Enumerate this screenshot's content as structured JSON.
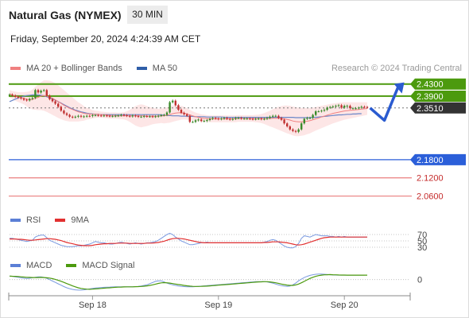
{
  "header": {
    "title": "Natural Gas (NYMEX)",
    "timeframe": "30 MIN",
    "datetime": "Friday, September 20, 2024 4:24:39 AM CET",
    "credit": "Research © 2024 Trading Central"
  },
  "colors": {
    "green": "#4c9a0e",
    "blue": "#2b5fd9",
    "red": "#ec8a8a",
    "dark": "#333333",
    "band": "#fde3e3",
    "ma50": "#6a86c8",
    "ma20": "#f08080",
    "rsi": "#7a9ae0",
    "nine_ma": "#e23030",
    "macd": "#7a9ae0",
    "macd_signal": "#4c9a0e",
    "candle_up": "#3a8a2a",
    "candle_down": "#c03030"
  },
  "legends": {
    "price": [
      {
        "label": "MA 20 + Bollinger Bands",
        "color": "#f08080"
      },
      {
        "label": "MA 50",
        "color": "#2f5ea8"
      }
    ],
    "rsi": [
      {
        "label": "RSI",
        "color": "#5b7fd6"
      },
      {
        "label": "9MA",
        "color": "#e23030"
      }
    ],
    "macd": [
      {
        "label": "MACD",
        "color": "#5b7fd6"
      },
      {
        "label": "MACD Signal",
        "color": "#4c9a0e"
      }
    ]
  },
  "chart_data": {
    "type": "line",
    "ylim": [
      2.03,
      2.445
    ],
    "xlim": [
      0,
      140
    ],
    "levels": [
      {
        "label": "2.4300",
        "value": 2.43,
        "style": "green"
      },
      {
        "label": "2.3900",
        "value": 2.39,
        "style": "green"
      },
      {
        "label": "2.3510",
        "value": 2.351,
        "style": "current"
      },
      {
        "label": "2.1800",
        "value": 2.18,
        "style": "blue"
      },
      {
        "label": "2.1200",
        "value": 2.12,
        "style": "red"
      },
      {
        "label": "2.0600",
        "value": 2.06,
        "style": "red"
      }
    ],
    "x_ticks": [
      {
        "label": "Sep 18",
        "x": 29
      },
      {
        "label": "Sep 19",
        "x": 73
      },
      {
        "label": "Sep 20",
        "x": 117
      }
    ],
    "price": [
      2.395,
      2.392,
      2.388,
      2.385,
      2.382,
      2.378,
      2.376,
      2.381,
      2.384,
      2.41,
      2.402,
      2.408,
      2.41,
      2.392,
      2.38,
      2.373,
      2.365,
      2.355,
      2.342,
      2.333,
      2.328,
      2.322,
      2.32,
      2.322,
      2.325,
      2.322,
      2.323,
      2.325,
      2.324,
      2.327,
      2.327,
      2.326,
      2.325,
      2.326,
      2.325,
      2.324,
      2.324,
      2.325,
      2.326,
      2.328,
      2.327,
      2.325,
      2.323,
      2.326,
      2.324,
      2.322,
      2.322,
      2.324,
      2.323,
      2.323,
      2.322,
      2.323,
      2.325,
      2.327,
      2.328,
      2.336,
      2.37,
      2.375,
      2.36,
      2.345,
      2.335,
      2.33,
      2.325,
      2.305,
      2.305,
      2.31,
      2.313,
      2.308,
      2.308,
      2.311,
      2.315,
      2.318,
      2.316,
      2.314,
      2.316,
      2.318,
      2.315,
      2.313,
      2.315,
      2.318,
      2.318,
      2.316,
      2.316,
      2.316,
      2.315,
      2.314,
      2.315,
      2.316,
      2.314,
      2.315,
      2.318,
      2.322,
      2.325,
      2.325,
      2.318,
      2.312,
      2.3,
      2.29,
      2.28,
      2.275,
      2.272,
      2.28,
      2.3,
      2.315,
      2.318,
      2.318,
      2.328,
      2.34,
      2.34,
      2.342,
      2.345,
      2.352,
      2.354,
      2.356,
      2.358,
      2.36,
      2.352,
      2.358,
      2.358,
      2.35,
      2.35,
      2.35,
      2.352,
      2.355,
      2.354,
      2.353
    ],
    "ma20": [
      2.398,
      2.394,
      2.39,
      2.387,
      2.385,
      2.383,
      2.38,
      2.378,
      2.379,
      2.383,
      2.386,
      2.39,
      2.392,
      2.39,
      2.387,
      2.383,
      2.378,
      2.372,
      2.366,
      2.36,
      2.355,
      2.35,
      2.346,
      2.342,
      2.338,
      2.336,
      2.333,
      2.332,
      2.331,
      2.33,
      2.33,
      2.33,
      2.329,
      2.328,
      2.327,
      2.326,
      2.326,
      2.326,
      2.325,
      2.325,
      2.325,
      2.325,
      2.325,
      2.325,
      2.325,
      2.325,
      2.325,
      2.325,
      2.324,
      2.324,
      2.324,
      2.324,
      2.324,
      2.325,
      2.325,
      2.327,
      2.329,
      2.332,
      2.334,
      2.335,
      2.335,
      2.334,
      2.331,
      2.328,
      2.325,
      2.322,
      2.32,
      2.318,
      2.317,
      2.316,
      2.315,
      2.315,
      2.315,
      2.315,
      2.315,
      2.315,
      2.315,
      2.315,
      2.315,
      2.315,
      2.316,
      2.316,
      2.316,
      2.316,
      2.316,
      2.316,
      2.316,
      2.316,
      2.316,
      2.316,
      2.316,
      2.316,
      2.317,
      2.317,
      2.317,
      2.316,
      2.315,
      2.313,
      2.311,
      2.308,
      2.306,
      2.305,
      2.305,
      2.306,
      2.307,
      2.309,
      2.312,
      2.315,
      2.318,
      2.321,
      2.324,
      2.327,
      2.33,
      2.333,
      2.335,
      2.337,
      2.339,
      2.341,
      2.342,
      2.343,
      2.344,
      2.345,
      2.346,
      2.347,
      2.348,
      2.349
    ],
    "bb_width": [
      0.012,
      0.013,
      0.015,
      0.016,
      0.018,
      0.02,
      0.024,
      0.028,
      0.033,
      0.038,
      0.042,
      0.046,
      0.05,
      0.052,
      0.054,
      0.055,
      0.055,
      0.054,
      0.052,
      0.05,
      0.047,
      0.044,
      0.04,
      0.036,
      0.032,
      0.028,
      0.024,
      0.02,
      0.017,
      0.014,
      0.012,
      0.011,
      0.01,
      0.01,
      0.01,
      0.01,
      0.01,
      0.01,
      0.01,
      0.011,
      0.012,
      0.015,
      0.02,
      0.026,
      0.032,
      0.036,
      0.038,
      0.036,
      0.033,
      0.03,
      0.027,
      0.025,
      0.024,
      0.024,
      0.025,
      0.026,
      0.027,
      0.027,
      0.026,
      0.025,
      0.023,
      0.021,
      0.019,
      0.017,
      0.015,
      0.014,
      0.013,
      0.012,
      0.012,
      0.011,
      0.011,
      0.011,
      0.011,
      0.011,
      0.011,
      0.011,
      0.011,
      0.011,
      0.011,
      0.011,
      0.011,
      0.011,
      0.011,
      0.011,
      0.011,
      0.011,
      0.012,
      0.013,
      0.015,
      0.018,
      0.022,
      0.026,
      0.03,
      0.034,
      0.038,
      0.041,
      0.044,
      0.046,
      0.047,
      0.048,
      0.048,
      0.047,
      0.046,
      0.045,
      0.043,
      0.042,
      0.04,
      0.039,
      0.038,
      0.037,
      0.036,
      0.035,
      0.034,
      0.033,
      0.032,
      0.031,
      0.03,
      0.029,
      0.028,
      0.027,
      0.026,
      0.025,
      0.024,
      0.023,
      0.022,
      0.021
    ],
    "ma50": [
      2.372,
      2.376,
      2.38,
      2.384,
      2.387,
      2.39,
      2.392,
      2.393,
      2.394,
      2.394,
      2.394,
      2.393,
      2.391,
      2.388,
      2.385,
      2.381,
      2.377,
      2.372,
      2.367,
      2.362,
      2.357,
      2.352,
      2.348,
      2.344,
      2.341,
      2.338,
      2.336,
      2.334,
      2.332,
      2.331,
      2.33,
      2.33,
      2.329,
      2.329,
      2.329,
      2.329,
      2.329,
      2.329,
      2.329,
      2.329,
      2.329,
      2.329,
      2.329,
      2.329,
      2.329,
      2.329,
      2.329,
      2.329,
      2.329,
      2.329,
      2.329,
      2.329,
      2.329,
      2.328,
      2.327,
      2.326,
      2.326,
      2.325,
      2.325,
      2.325,
      2.324,
      2.324,
      2.324,
      2.323,
      2.323,
      2.322,
      2.322,
      2.322,
      2.322,
      2.321,
      2.321,
      2.321,
      2.321,
      2.321,
      2.321,
      2.32,
      2.32,
      2.32,
      2.32,
      2.32,
      2.32,
      2.32,
      2.32,
      2.32,
      2.32,
      2.32,
      2.32,
      2.32,
      2.32,
      2.32,
      2.32,
      2.32,
      2.32,
      2.32,
      2.32,
      2.32,
      2.32,
      2.32,
      2.32,
      2.32,
      2.319,
      2.319,
      2.319,
      2.319,
      2.319,
      2.319,
      2.32,
      2.32,
      2.321,
      2.322,
      2.323,
      2.324,
      2.325,
      2.326,
      2.327,
      2.328,
      2.328,
      2.329,
      2.33,
      2.33,
      2.331,
      2.331,
      2.332,
      2.332
    ],
    "forecast": [
      [
        126,
        2.351
      ],
      [
        131,
        2.31
      ],
      [
        136,
        2.425
      ]
    ],
    "rsi": {
      "levels": [
        {
          "label": "70",
          "value": 70
        },
        {
          "label": "50",
          "value": 50
        },
        {
          "label": "30",
          "value": 30
        }
      ],
      "ylim": [
        10,
        90
      ],
      "rsi": [
        58,
        58,
        56,
        54,
        52,
        50,
        48,
        50,
        52,
        62,
        66,
        68,
        68,
        60,
        52,
        48,
        44,
        40,
        36,
        34,
        32,
        32,
        32,
        33,
        35,
        34,
        36,
        38,
        40,
        44,
        48,
        46,
        44,
        44,
        42,
        40,
        40,
        42,
        44,
        46,
        44,
        42,
        40,
        42,
        44,
        42,
        40,
        42,
        44,
        44,
        46,
        48,
        52,
        58,
        64,
        70,
        74,
        70,
        62,
        56,
        50,
        46,
        42,
        38,
        38,
        40,
        42,
        44,
        44,
        46,
        44,
        44,
        44,
        44,
        44,
        44,
        44,
        44,
        44,
        44,
        44,
        44,
        44,
        44,
        44,
        44,
        44,
        44,
        44,
        46,
        48,
        52,
        54,
        52,
        46,
        40,
        34,
        30,
        28,
        28,
        32,
        42,
        58,
        66,
        64,
        62,
        66,
        70,
        68,
        66,
        66,
        66,
        64,
        64,
        62,
        64,
        62,
        64,
        62,
        62,
        62,
        62,
        62,
        62,
        62,
        62
      ],
      "ma9": [
        56,
        56,
        56,
        55,
        55,
        54,
        53,
        52,
        52,
        53,
        54,
        55,
        56,
        57,
        57,
        56,
        55,
        53,
        51,
        48,
        45,
        43,
        41,
        39,
        37,
        36,
        35,
        35,
        35,
        36,
        38,
        39,
        40,
        41,
        41,
        42,
        42,
        42,
        43,
        43,
        43,
        43,
        42,
        42,
        42,
        42,
        42,
        42,
        43,
        43,
        43,
        44,
        45,
        47,
        49,
        52,
        55,
        57,
        58,
        58,
        57,
        56,
        54,
        52,
        50,
        48,
        46,
        45,
        44,
        44,
        44,
        44,
        44,
        44,
        44,
        44,
        44,
        44,
        44,
        44,
        44,
        44,
        44,
        44,
        44,
        44,
        44,
        44,
        44,
        45,
        45,
        46,
        47,
        47,
        47,
        46,
        45,
        44,
        42,
        40,
        38,
        37,
        38,
        40,
        43,
        46,
        49,
        52,
        55,
        58,
        60,
        61,
        62,
        62,
        62,
        62,
        62,
        62,
        62,
        62,
        62,
        62,
        62,
        62,
        62,
        62
      ]
    },
    "macd": {
      "zero_label": "0",
      "ylim": [
        -1.25,
        0.8
      ],
      "macd": [
        0.3,
        0.28,
        0.24,
        0.2,
        0.16,
        0.12,
        0.1,
        0.12,
        0.16,
        0.2,
        0.24,
        0.24,
        0.2,
        0.1,
        0,
        -0.12,
        -0.24,
        -0.36,
        -0.48,
        -0.6,
        -0.7,
        -0.78,
        -0.84,
        -0.88,
        -0.9,
        -0.9,
        -0.88,
        -0.84,
        -0.8,
        -0.76,
        -0.72,
        -0.7,
        -0.68,
        -0.66,
        -0.65,
        -0.64,
        -0.63,
        -0.62,
        -0.62,
        -0.62,
        -0.62,
        -0.62,
        -0.62,
        -0.62,
        -0.6,
        -0.58,
        -0.55,
        -0.5,
        -0.45,
        -0.35,
        -0.25,
        -0.15,
        -0.1,
        -0.1,
        -0.2,
        -0.3,
        -0.38,
        -0.45,
        -0.5,
        -0.55,
        -0.58,
        -0.6,
        -0.62,
        -0.62,
        -0.62,
        -0.6,
        -0.58,
        -0.56,
        -0.54,
        -0.52,
        -0.5,
        -0.48,
        -0.46,
        -0.44,
        -0.42,
        -0.4,
        -0.38,
        -0.36,
        -0.34,
        -0.32,
        -0.3,
        -0.28,
        -0.26,
        -0.24,
        -0.22,
        -0.2,
        -0.18,
        -0.17,
        -0.17,
        -0.18,
        -0.2,
        -0.25,
        -0.3,
        -0.38,
        -0.46,
        -0.52,
        -0.56,
        -0.58,
        -0.55,
        -0.45,
        -0.3,
        -0.1,
        0.05,
        0.18,
        0.28,
        0.36,
        0.42,
        0.46,
        0.48,
        0.48,
        0.46,
        0.44,
        0.42,
        0.4,
        0.39,
        0.38,
        0.38,
        0.38,
        0.38,
        0.38,
        0.38,
        0.38,
        0.38,
        0.38,
        0.38
      ],
      "signal": [
        0.3,
        0.29,
        0.28,
        0.26,
        0.24,
        0.22,
        0.2,
        0.19,
        0.18,
        0.18,
        0.18,
        0.19,
        0.18,
        0.16,
        0.13,
        0.08,
        0.02,
        -0.06,
        -0.14,
        -0.24,
        -0.34,
        -0.44,
        -0.54,
        -0.62,
        -0.7,
        -0.76,
        -0.8,
        -0.82,
        -0.83,
        -0.82,
        -0.8,
        -0.78,
        -0.76,
        -0.74,
        -0.72,
        -0.7,
        -0.68,
        -0.66,
        -0.65,
        -0.64,
        -0.63,
        -0.62,
        -0.62,
        -0.62,
        -0.61,
        -0.6,
        -0.59,
        -0.57,
        -0.54,
        -0.5,
        -0.45,
        -0.39,
        -0.33,
        -0.28,
        -0.26,
        -0.27,
        -0.3,
        -0.34,
        -0.38,
        -0.42,
        -0.46,
        -0.5,
        -0.53,
        -0.56,
        -0.58,
        -0.59,
        -0.59,
        -0.58,
        -0.57,
        -0.56,
        -0.54,
        -0.52,
        -0.5,
        -0.48,
        -0.46,
        -0.44,
        -0.42,
        -0.4,
        -0.38,
        -0.36,
        -0.34,
        -0.32,
        -0.3,
        -0.28,
        -0.26,
        -0.24,
        -0.22,
        -0.2,
        -0.19,
        -0.18,
        -0.18,
        -0.2,
        -0.23,
        -0.27,
        -0.32,
        -0.38,
        -0.43,
        -0.47,
        -0.5,
        -0.5,
        -0.46,
        -0.38,
        -0.27,
        -0.15,
        -0.02,
        0.1,
        0.2,
        0.28,
        0.34,
        0.38,
        0.41,
        0.42,
        0.43,
        0.42,
        0.41,
        0.4,
        0.39,
        0.39,
        0.38,
        0.38,
        0.38,
        0.38,
        0.38,
        0.38,
        0.38,
        0.38
      ]
    }
  }
}
